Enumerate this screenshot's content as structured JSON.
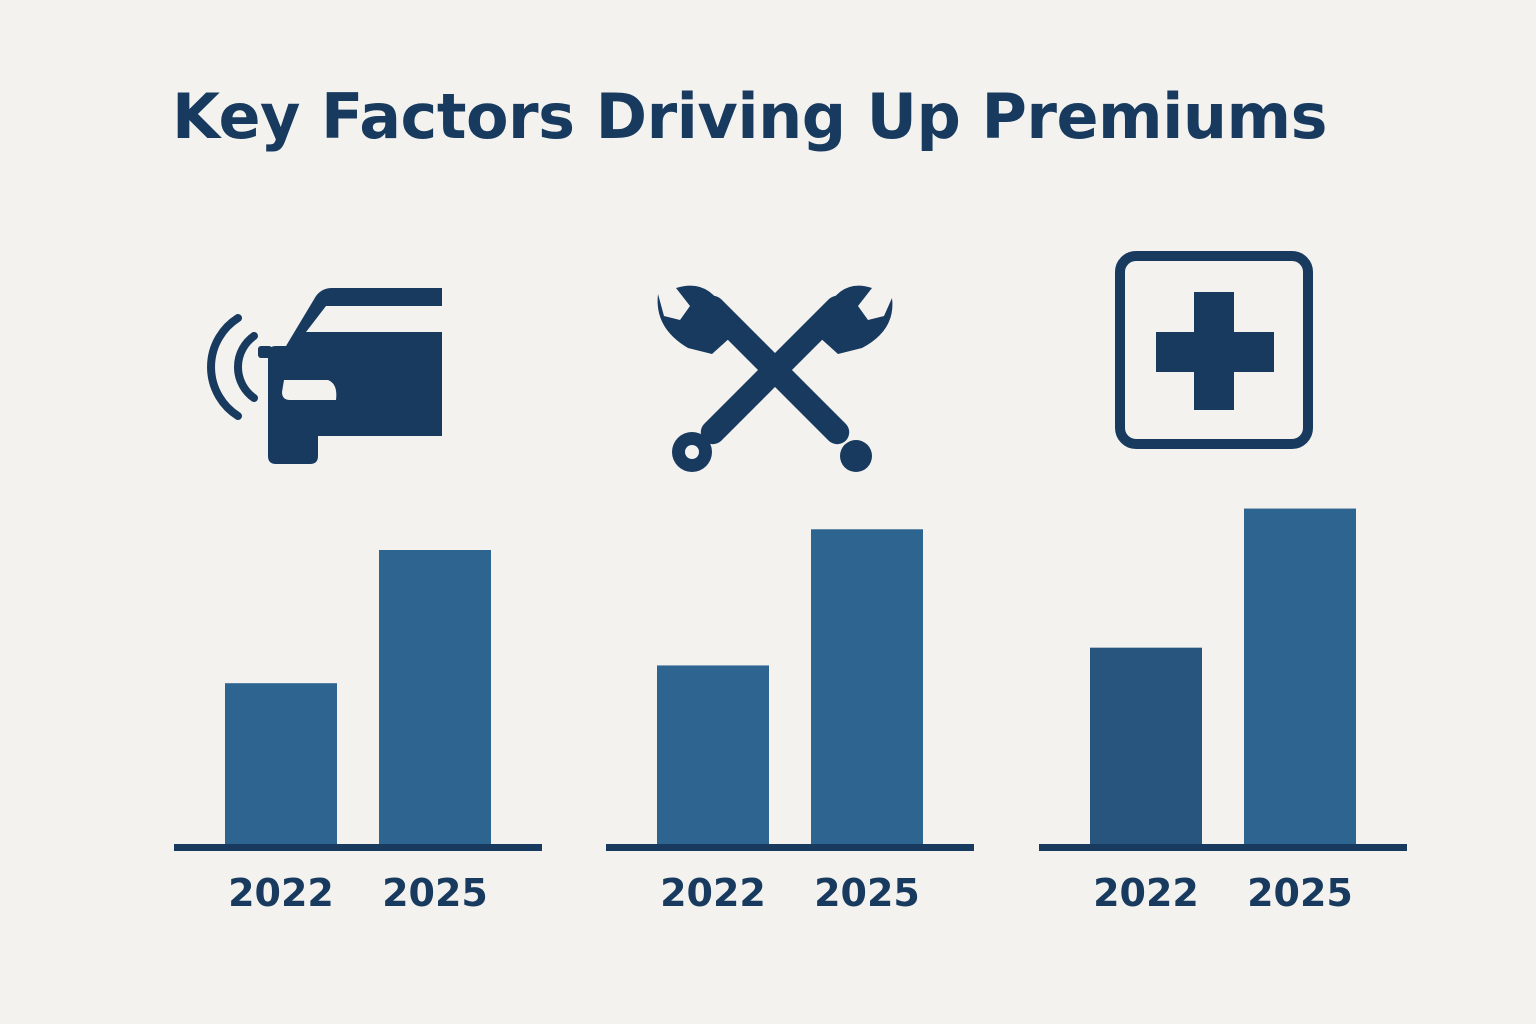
{
  "title": "Key Factors Driving Up Premiums",
  "colors": {
    "background": "#f3f2ef",
    "title": "#173a5e",
    "icon": "#173a5e",
    "bar": "#2e6490",
    "bar_dark": "#28557d",
    "baseline": "#173a5e",
    "tick_label": "#173a5e"
  },
  "panels": [
    {
      "icon": "connected-car-icon"
    },
    {
      "icon": "crossed-wrenches-icon"
    },
    {
      "icon": "medical-cross-icon"
    }
  ],
  "chart_data": [
    {
      "type": "bar",
      "categories": [
        "2022",
        "2025"
      ],
      "values": [
        55,
        100
      ],
      "ylim": [
        0,
        110
      ],
      "grid": false,
      "title": "",
      "xlabel": "",
      "ylabel": ""
    },
    {
      "type": "bar",
      "categories": [
        "2022",
        "2025"
      ],
      "values": [
        61,
        107
      ],
      "ylim": [
        0,
        110
      ],
      "grid": false,
      "title": "",
      "xlabel": "",
      "ylabel": ""
    },
    {
      "type": "bar",
      "categories": [
        "2022",
        "2025"
      ],
      "values": [
        67,
        114
      ],
      "ylim": [
        0,
        110
      ],
      "grid": false,
      "title": "",
      "xlabel": "",
      "ylabel": ""
    }
  ]
}
